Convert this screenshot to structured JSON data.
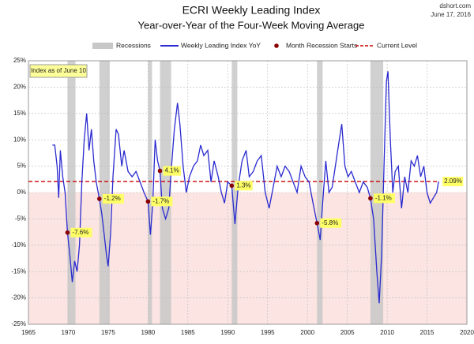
{
  "chart_data": {
    "type": "line",
    "title": "ECRI Weekly Leading Index",
    "subtitle": "Year-over-Year of the Four-Week Moving Average",
    "source": "dshort.com",
    "date": "June 17, 2016",
    "note": "Index as of June 10",
    "x": [
      1968.0,
      1968.3,
      1968.6,
      1968.8,
      1969.0,
      1969.3,
      1969.6,
      1969.9,
      1970.2,
      1970.5,
      1970.8,
      1971.1,
      1971.4,
      1971.7,
      1972.0,
      1972.3,
      1972.6,
      1972.9,
      1973.2,
      1973.5,
      1973.9,
      1974.2,
      1974.5,
      1974.8,
      1975.0,
      1975.3,
      1975.6,
      1976.0,
      1976.3,
      1976.7,
      1977.0,
      1977.5,
      1978.0,
      1978.5,
      1979.0,
      1979.5,
      1980.0,
      1980.3,
      1980.6,
      1980.9,
      1981.2,
      1981.5,
      1981.8,
      1982.2,
      1982.6,
      1982.9,
      1983.3,
      1983.7,
      1984.0,
      1984.4,
      1984.8,
      1985.2,
      1985.7,
      1986.2,
      1986.6,
      1987.0,
      1987.5,
      1987.9,
      1988.3,
      1988.8,
      1989.2,
      1989.6,
      1990.0,
      1990.5,
      1990.9,
      1991.3,
      1991.8,
      1992.3,
      1992.7,
      1993.2,
      1993.7,
      1994.2,
      1994.7,
      1995.2,
      1995.7,
      1996.2,
      1996.7,
      1997.2,
      1997.7,
      1998.2,
      1998.7,
      1999.2,
      1999.7,
      2000.2,
      2000.7,
      2001.2,
      2001.6,
      2001.9,
      2002.3,
      2002.7,
      2003.1,
      2003.6,
      2004.0,
      2004.3,
      2004.7,
      2005.1,
      2005.5,
      2006.0,
      2006.5,
      2007.0,
      2007.5,
      2007.9,
      2008.3,
      2008.7,
      2009.0,
      2009.3,
      2009.6,
      2009.9,
      2010.1,
      2010.4,
      2010.7,
      2011.0,
      2011.4,
      2011.8,
      2012.2,
      2012.6,
      2013.0,
      2013.4,
      2013.8,
      2014.2,
      2014.6,
      2015.0,
      2015.4,
      2015.8,
      2016.2,
      2016.45
    ],
    "series": [
      {
        "name": "Weekly Leading Index YoY",
        "color": "#2a2ad0",
        "values": [
          9,
          9,
          5,
          -1,
          8,
          3,
          0,
          -7.6,
          -12,
          -17,
          -13,
          -15,
          -10,
          2,
          10,
          15,
          8,
          12,
          6,
          2,
          -1.2,
          -4,
          -8,
          -12,
          -14,
          -8,
          3,
          12,
          11,
          5,
          8,
          4,
          3,
          4,
          2,
          0,
          -1.7,
          -8,
          -2,
          10,
          6,
          4.1,
          -3,
          -5,
          -3,
          4,
          12,
          17,
          13,
          5,
          0,
          3,
          5,
          6,
          9,
          7,
          8,
          2,
          6,
          3,
          0,
          -2,
          2,
          1.3,
          -6,
          1,
          6,
          8,
          3,
          4,
          6,
          7,
          0,
          -3,
          1,
          5,
          3,
          5,
          4,
          2,
          0,
          5,
          3,
          2,
          -2,
          -5.8,
          -9,
          -2,
          6,
          0,
          1,
          6,
          10,
          13,
          5,
          3,
          4,
          2,
          0,
          2,
          1,
          -1.1,
          -5,
          -15,
          -21,
          -12,
          5,
          21,
          23,
          10,
          0,
          4,
          5,
          -3,
          3,
          0,
          6,
          5,
          7,
          3,
          5,
          0,
          -2,
          -1,
          0,
          2.09
        ]
      }
    ],
    "recessions": {
      "name": "Recessions",
      "color": "#c8c8c8",
      "spans": [
        [
          1969.9,
          1970.9
        ],
        [
          1973.9,
          1975.2
        ],
        [
          1980.0,
          1980.5
        ],
        [
          1981.5,
          1982.9
        ],
        [
          1990.5,
          1991.2
        ],
        [
          2001.2,
          2001.9
        ],
        [
          2007.9,
          2009.5
        ]
      ]
    },
    "recession_starts": {
      "name": "Month Recession Starts",
      "color": "#8b0000",
      "x": [
        1969.9,
        1973.9,
        1980.0,
        1981.5,
        1990.5,
        2001.2,
        2007.9
      ],
      "values": [
        -7.6,
        -1.2,
        -1.7,
        4.1,
        1.3,
        -5.8,
        -1.1
      ],
      "value_labels": [
        "-7.6%",
        "-1.2%",
        "-1.7%",
        "4.1%",
        "1.3%",
        "-5.8%",
        "-1.1%"
      ]
    },
    "current_level": {
      "name": "Current Level",
      "color": "#cc0000",
      "value": 2.09,
      "value_label": "2.09%"
    },
    "xlim": [
      1965,
      2020
    ],
    "ylim": [
      -25,
      25
    ],
    "xticks": [
      1965,
      1970,
      1975,
      1980,
      1985,
      1990,
      1995,
      2000,
      2005,
      2010,
      2015,
      2020
    ],
    "yticks": [
      {
        "value": 25,
        "label": "25%"
      },
      {
        "value": 20,
        "label": "20%"
      },
      {
        "value": 15,
        "label": "15%"
      },
      {
        "value": 10,
        "label": "10%"
      },
      {
        "value": 5,
        "label": "5%"
      },
      {
        "value": 0,
        "label": "0%"
      },
      {
        "value": -5,
        "label": "-5%"
      },
      {
        "value": -10,
        "label": "-10%"
      },
      {
        "value": -15,
        "label": "-15%"
      },
      {
        "value": -20,
        "label": "-20%"
      },
      {
        "value": -25,
        "label": "-25%"
      }
    ],
    "grid": true
  }
}
